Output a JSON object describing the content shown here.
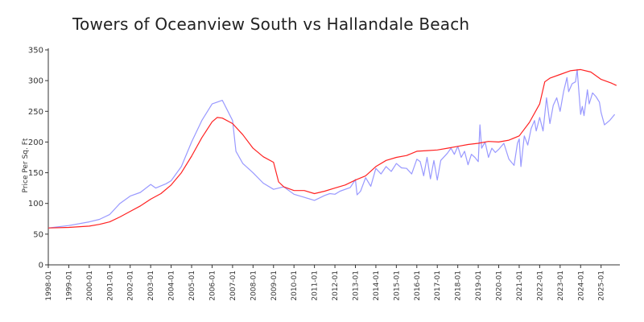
{
  "chart_data": {
    "type": "line",
    "title": "Towers of Oceanview South vs Hallandale Beach",
    "xlabel": "",
    "ylabel": "Price Per Sq. Ft",
    "ylim": [
      0,
      350
    ],
    "yticks": [
      0,
      50,
      100,
      150,
      200,
      250,
      300,
      350
    ],
    "xlim": [
      "1998-01",
      "2025-12"
    ],
    "xticks": [
      "1998-01",
      "1999-01",
      "2000-01",
      "2001-01",
      "2002-01",
      "2003-01",
      "2004-01",
      "2005-01",
      "2006-01",
      "2007-01",
      "2008-01",
      "2009-01",
      "2010-01",
      "2011-01",
      "2012-01",
      "2013-01",
      "2014-01",
      "2015-01",
      "2016-01",
      "2017-01",
      "2018-01",
      "2019-01",
      "2020-01",
      "2021-01",
      "2022-01",
      "2023-01",
      "2024-01",
      "2025-01"
    ],
    "grid": false,
    "legend": "none",
    "colors": {
      "building": "#9999ff",
      "city": "#ff2222",
      "axis": "#333333"
    },
    "series": [
      {
        "name": "Towers of Oceanview South",
        "color": "#9999ff",
        "points": [
          [
            "1998-01",
            60
          ],
          [
            "1999-01",
            64
          ],
          [
            "2000-01",
            70
          ],
          [
            "2000-07",
            74
          ],
          [
            "2001-01",
            82
          ],
          [
            "2001-07",
            100
          ],
          [
            "2002-01",
            112
          ],
          [
            "2002-07",
            118
          ],
          [
            "2003-01",
            131
          ],
          [
            "2003-04",
            125
          ],
          [
            "2003-10",
            132
          ],
          [
            "2004-01",
            137
          ],
          [
            "2004-07",
            160
          ],
          [
            "2005-01",
            200
          ],
          [
            "2005-07",
            235
          ],
          [
            "2006-01",
            262
          ],
          [
            "2006-07",
            268
          ],
          [
            "2007-01",
            235
          ],
          [
            "2007-03",
            185
          ],
          [
            "2007-07",
            165
          ],
          [
            "2008-01",
            150
          ],
          [
            "2008-07",
            133
          ],
          [
            "2009-01",
            123
          ],
          [
            "2009-07",
            127
          ],
          [
            "2010-01",
            115
          ],
          [
            "2010-07",
            110
          ],
          [
            "2011-01",
            105
          ],
          [
            "2011-07",
            113
          ],
          [
            "2011-10",
            116
          ],
          [
            "2012-01",
            115
          ],
          [
            "2012-04",
            120
          ],
          [
            "2012-10",
            126
          ],
          [
            "2013-01",
            139
          ],
          [
            "2013-02",
            114
          ],
          [
            "2013-04",
            120
          ],
          [
            "2013-07",
            142
          ],
          [
            "2013-10",
            128
          ],
          [
            "2014-01",
            157
          ],
          [
            "2014-04",
            148
          ],
          [
            "2014-07",
            160
          ],
          [
            "2014-10",
            152
          ],
          [
            "2015-01",
            165
          ],
          [
            "2015-04",
            158
          ],
          [
            "2015-07",
            157
          ],
          [
            "2015-10",
            148
          ],
          [
            "2016-01",
            172
          ],
          [
            "2016-03",
            168
          ],
          [
            "2016-05",
            145
          ],
          [
            "2016-07",
            175
          ],
          [
            "2016-09",
            140
          ],
          [
            "2016-11",
            170
          ],
          [
            "2017-01",
            138
          ],
          [
            "2017-03",
            170
          ],
          [
            "2017-07",
            182
          ],
          [
            "2017-09",
            190
          ],
          [
            "2017-11",
            180
          ],
          [
            "2018-01",
            193
          ],
          [
            "2018-03",
            175
          ],
          [
            "2018-05",
            185
          ],
          [
            "2018-07",
            163
          ],
          [
            "2018-09",
            180
          ],
          [
            "2018-11",
            175
          ],
          [
            "2019-01",
            168
          ],
          [
            "2019-02",
            228
          ],
          [
            "2019-03",
            190
          ],
          [
            "2019-05",
            200
          ],
          [
            "2019-07",
            175
          ],
          [
            "2019-09",
            190
          ],
          [
            "2019-11",
            183
          ],
          [
            "2020-01",
            188
          ],
          [
            "2020-04",
            198
          ],
          [
            "2020-07",
            172
          ],
          [
            "2020-10",
            162
          ],
          [
            "2020-12",
            198
          ],
          [
            "2021-01",
            205
          ],
          [
            "2021-02",
            160
          ],
          [
            "2021-04",
            210
          ],
          [
            "2021-06",
            195
          ],
          [
            "2021-08",
            222
          ],
          [
            "2021-10",
            235
          ],
          [
            "2021-11",
            218
          ],
          [
            "2022-01",
            240
          ],
          [
            "2022-03",
            218
          ],
          [
            "2022-05",
            272
          ],
          [
            "2022-07",
            230
          ],
          [
            "2022-09",
            260
          ],
          [
            "2022-11",
            272
          ],
          [
            "2023-01",
            250
          ],
          [
            "2023-03",
            282
          ],
          [
            "2023-05",
            305
          ],
          [
            "2023-06",
            282
          ],
          [
            "2023-08",
            295
          ],
          [
            "2023-10",
            298
          ],
          [
            "2023-11",
            318
          ],
          [
            "2024-01",
            245
          ],
          [
            "2024-02",
            258
          ],
          [
            "2024-03",
            243
          ],
          [
            "2024-05",
            285
          ],
          [
            "2024-06",
            262
          ],
          [
            "2024-08",
            280
          ],
          [
            "2024-10",
            274
          ],
          [
            "2024-12",
            265
          ],
          [
            "2025-01",
            248
          ],
          [
            "2025-03",
            228
          ],
          [
            "2025-06",
            235
          ],
          [
            "2025-09",
            245
          ]
        ]
      },
      {
        "name": "Hallandale Beach",
        "color": "#ff2222",
        "points": [
          [
            "1998-01",
            60
          ],
          [
            "1999-01",
            61
          ],
          [
            "2000-01",
            63
          ],
          [
            "2000-07",
            66
          ],
          [
            "2001-01",
            70
          ],
          [
            "2001-07",
            78
          ],
          [
            "2002-01",
            87
          ],
          [
            "2002-07",
            96
          ],
          [
            "2003-01",
            107
          ],
          [
            "2003-07",
            116
          ],
          [
            "2004-01",
            130
          ],
          [
            "2004-07",
            150
          ],
          [
            "2005-01",
            177
          ],
          [
            "2005-07",
            207
          ],
          [
            "2006-01",
            233
          ],
          [
            "2006-04",
            240
          ],
          [
            "2006-07",
            239
          ],
          [
            "2007-01",
            230
          ],
          [
            "2007-07",
            212
          ],
          [
            "2008-01",
            190
          ],
          [
            "2008-07",
            176
          ],
          [
            "2009-01",
            167
          ],
          [
            "2009-04",
            135
          ],
          [
            "2009-07",
            127
          ],
          [
            "2010-01",
            121
          ],
          [
            "2010-07",
            121
          ],
          [
            "2011-01",
            116
          ],
          [
            "2011-07",
            120
          ],
          [
            "2012-01",
            125
          ],
          [
            "2012-07",
            130
          ],
          [
            "2013-01",
            138
          ],
          [
            "2013-07",
            145
          ],
          [
            "2014-01",
            160
          ],
          [
            "2014-07",
            170
          ],
          [
            "2015-01",
            175
          ],
          [
            "2015-07",
            178
          ],
          [
            "2016-01",
            185
          ],
          [
            "2016-07",
            186
          ],
          [
            "2017-01",
            187
          ],
          [
            "2017-07",
            190
          ],
          [
            "2018-01",
            193
          ],
          [
            "2018-07",
            196
          ],
          [
            "2019-01",
            198
          ],
          [
            "2019-07",
            201
          ],
          [
            "2020-01",
            200
          ],
          [
            "2020-07",
            203
          ],
          [
            "2021-01",
            210
          ],
          [
            "2021-07",
            232
          ],
          [
            "2022-01",
            262
          ],
          [
            "2022-04",
            298
          ],
          [
            "2022-07",
            304
          ],
          [
            "2023-01",
            310
          ],
          [
            "2023-07",
            316
          ],
          [
            "2024-01",
            318
          ],
          [
            "2024-07",
            314
          ],
          [
            "2025-01",
            302
          ],
          [
            "2025-07",
            296
          ],
          [
            "2025-10",
            292
          ]
        ]
      }
    ]
  }
}
